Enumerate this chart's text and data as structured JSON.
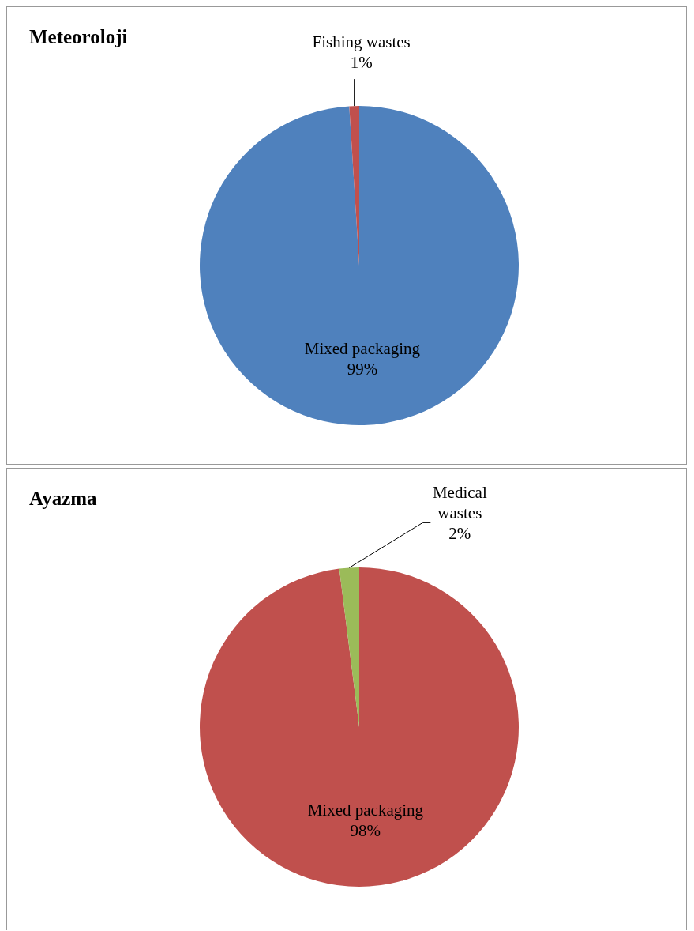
{
  "chart_data": [
    {
      "type": "pie",
      "title": "Meteoroloji",
      "categories": [
        "Mixed packaging",
        "Fishing wastes"
      ],
      "values": [
        99,
        1
      ],
      "colors": [
        "#4f81bd",
        "#c0504d"
      ],
      "value_labels": [
        "99%",
        "1%"
      ],
      "legend": false
    },
    {
      "type": "pie",
      "title": "Ayazma",
      "categories": [
        "Mixed packaging",
        "Medical wastes"
      ],
      "values": [
        98,
        2
      ],
      "colors": [
        "#c0504d",
        "#9bbb59"
      ],
      "value_labels": [
        "98%",
        "2%"
      ],
      "legend": false
    }
  ]
}
